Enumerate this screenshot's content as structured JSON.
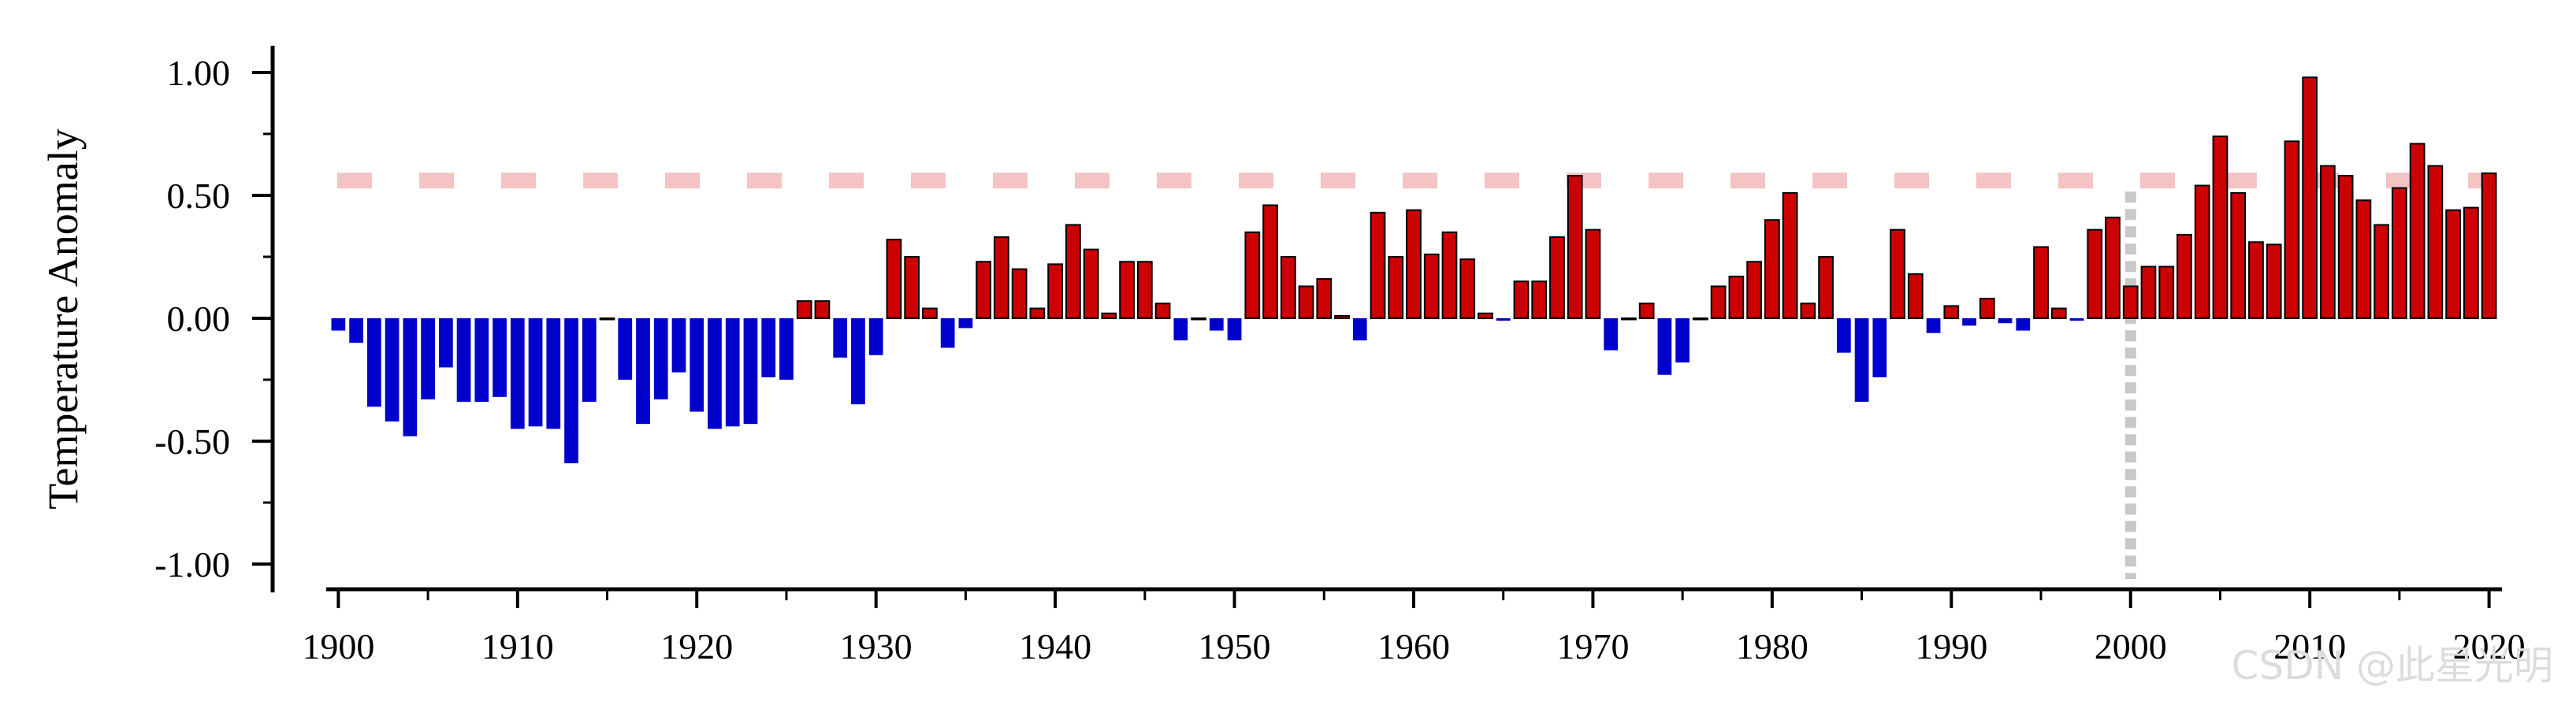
{
  "watermark": "CSDN @此星光明",
  "chart_data": {
    "type": "bar",
    "ylabel": "Temperature Anomaly",
    "xlabel": "",
    "ylim": [
      -1.1,
      1.1
    ],
    "y_ticks": [
      "1.00",
      "0.50",
      "0.00",
      "-0.50",
      "-1.00"
    ],
    "x_ticks": [
      "1900",
      "1910",
      "1920",
      "1930",
      "1940",
      "1950",
      "1960",
      "1970",
      "1980",
      "1990",
      "2000",
      "2010",
      "2020"
    ],
    "x_range": [
      1899.5,
      2020.5
    ],
    "reference_line_y": 0.56,
    "reference_line_x": 2000,
    "colors": {
      "positive": "#cc0000",
      "negative": "#0000cc",
      "reference_line": "#f4c4c4",
      "vertical_line": "#c8c8c8"
    },
    "x": [
      1900,
      1901,
      1902,
      1903,
      1904,
      1905,
      1906,
      1907,
      1908,
      1909,
      1910,
      1911,
      1912,
      1913,
      1914,
      1915,
      1916,
      1917,
      1918,
      1919,
      1920,
      1921,
      1922,
      1923,
      1924,
      1925,
      1926,
      1927,
      1928,
      1929,
      1930,
      1931,
      1932,
      1933,
      1934,
      1935,
      1936,
      1937,
      1938,
      1939,
      1940,
      1941,
      1942,
      1943,
      1944,
      1945,
      1946,
      1947,
      1948,
      1949,
      1950,
      1951,
      1952,
      1953,
      1954,
      1955,
      1956,
      1957,
      1958,
      1959,
      1960,
      1961,
      1962,
      1963,
      1964,
      1965,
      1966,
      1967,
      1968,
      1969,
      1970,
      1971,
      1972,
      1973,
      1974,
      1975,
      1976,
      1977,
      1978,
      1979,
      1980,
      1981,
      1982,
      1983,
      1984,
      1985,
      1986,
      1987,
      1988,
      1989,
      1990,
      1991,
      1992,
      1993,
      1994,
      1995,
      1996,
      1997,
      1998,
      1999,
      2000,
      2001,
      2002,
      2003,
      2004,
      2005,
      2006,
      2007,
      2008,
      2009,
      2010,
      2011,
      2012,
      2013,
      2014,
      2015,
      2016,
      2017,
      2018,
      2019,
      2020
    ],
    "values": [
      -0.05,
      -0.1,
      -0.36,
      -0.42,
      -0.48,
      -0.33,
      -0.2,
      -0.34,
      -0.34,
      -0.32,
      -0.45,
      -0.44,
      -0.45,
      -0.59,
      -0.34,
      0.0,
      -0.25,
      -0.43,
      -0.33,
      -0.22,
      -0.38,
      -0.45,
      -0.44,
      -0.43,
      -0.24,
      -0.25,
      0.07,
      0.07,
      -0.16,
      -0.35,
      -0.15,
      0.32,
      0.25,
      0.04,
      -0.12,
      -0.04,
      0.23,
      0.33,
      0.2,
      0.04,
      0.22,
      0.38,
      0.28,
      0.02,
      0.23,
      0.23,
      0.06,
      -0.09,
      0.0,
      -0.05,
      -0.09,
      0.35,
      0.46,
      0.25,
      0.13,
      0.16,
      0.01,
      -0.09,
      0.43,
      0.25,
      0.44,
      0.26,
      0.35,
      0.24,
      0.02,
      -0.01,
      0.15,
      0.15,
      0.33,
      0.58,
      0.36,
      -0.13,
      0.0,
      0.06,
      -0.23,
      -0.18,
      0.0,
      0.13,
      0.17,
      0.23,
      0.4,
      0.51,
      0.06,
      0.25,
      -0.14,
      -0.34,
      -0.24,
      0.36,
      0.18,
      -0.06,
      0.05,
      -0.03,
      0.08,
      -0.02,
      -0.05,
      0.29,
      0.04,
      -0.01,
      0.36,
      0.41,
      0.13,
      0.21,
      0.21,
      0.34,
      0.54,
      0.74,
      0.51,
      0.31,
      0.3,
      0.72,
      0.98,
      0.62,
      0.58,
      0.48,
      0.38,
      0.53,
      0.71,
      0.62,
      0.44,
      0.45,
      0.59
    ]
  }
}
